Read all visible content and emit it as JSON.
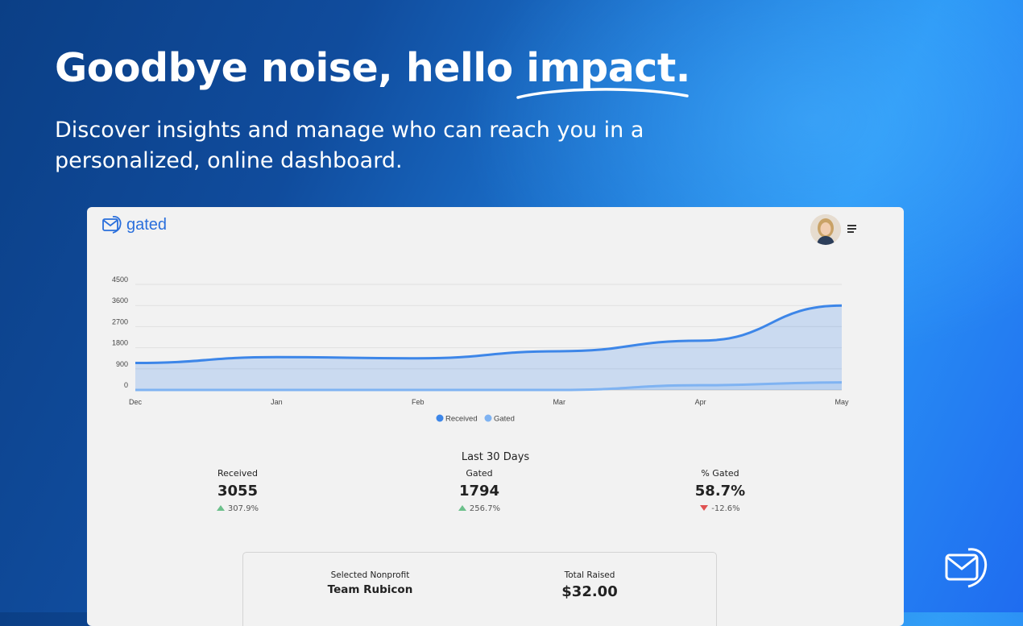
{
  "hero": {
    "headline_lead": "Goodbye noise, hello ",
    "headline_accent": "impact",
    "headline_end": ".",
    "subheadline": "Discover insights and manage who can reach you in a personalized, online dashboard."
  },
  "app": {
    "logo_text": "gated",
    "brand_color": "#2a6fdc",
    "header_icons": [
      "envelope-logo-icon",
      "avatar",
      "menu-icon"
    ]
  },
  "chart_data": {
    "type": "area",
    "x": [
      "Dec",
      "Jan",
      "Feb",
      "Mar",
      "Apr",
      "May"
    ],
    "series": [
      {
        "name": "Received",
        "color": "#3d86e8",
        "values": [
          1150,
          1400,
          1350,
          1650,
          2100,
          3600
        ]
      },
      {
        "name": "Gated",
        "color": "#7fb3f2",
        "values": [
          0,
          0,
          0,
          0,
          200,
          320
        ]
      }
    ],
    "yticks": [
      0,
      900,
      1800,
      2700,
      3600,
      4500
    ],
    "ylim": [
      0,
      4500
    ],
    "grid": true,
    "legend_position": "bottom-center"
  },
  "stats": {
    "period_label": "Last 30 Days",
    "items": [
      {
        "label": "Received",
        "value": "3055",
        "change": "307.9%",
        "direction": "up"
      },
      {
        "label": "Gated",
        "value": "1794",
        "change": "256.7%",
        "direction": "up"
      },
      {
        "label": "% Gated",
        "value": "58.7%",
        "change": "-12.6%",
        "direction": "down"
      }
    ]
  },
  "nonprofit": {
    "selected_label": "Selected Nonprofit",
    "selected_name": "Team Rubicon",
    "total_label": "Total Raised",
    "total_value": "$32.00"
  },
  "colors": {
    "up": "#6cc08b",
    "down": "#e05252"
  }
}
